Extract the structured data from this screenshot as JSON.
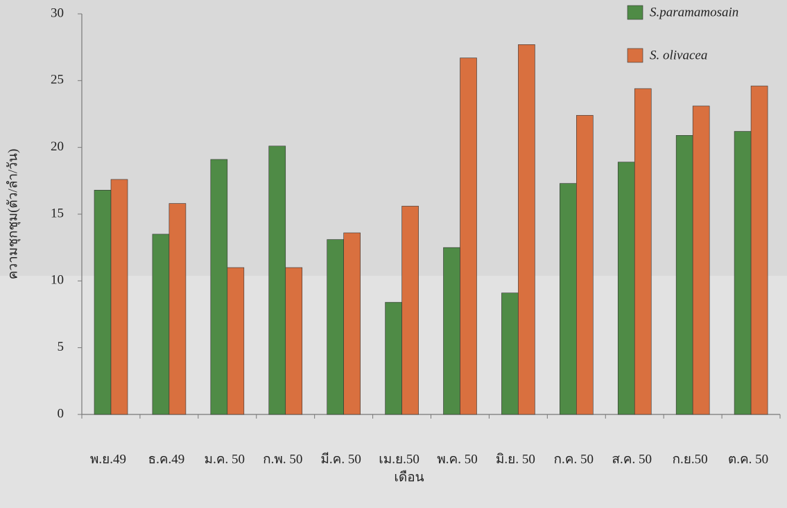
{
  "chart_data": {
    "type": "bar",
    "x_label": "เดือน",
    "y_label": "ความชุกชุม(ตัว/ลำ/วัน)",
    "categories": [
      "พ.ย.49",
      "ธ.ค.49",
      "ม.ค. 50",
      "ก.พ. 50",
      "มี.ค. 50",
      "เม.ย.50",
      "พ.ค. 50",
      "มิ.ย. 50",
      "ก.ค. 50",
      "ส.ค. 50",
      "ก.ย.50",
      "ต.ค. 50"
    ],
    "series": [
      {
        "name": "S.paramamosain",
        "color": "#4f8b46",
        "values": [
          16.8,
          13.5,
          19.1,
          20.1,
          13.1,
          8.4,
          12.5,
          9.1,
          17.3,
          18.9,
          20.9,
          21.2
        ]
      },
      {
        "name": "S. olivacea",
        "color": "#d9703f",
        "values": [
          17.6,
          15.8,
          11.0,
          11.0,
          13.6,
          15.6,
          26.7,
          27.7,
          22.4,
          24.4,
          23.1,
          24.6
        ]
      }
    ],
    "ylim": [
      0,
      30
    ],
    "yticks": [
      0,
      5,
      10,
      15,
      20,
      25,
      30
    ],
    "legend": "upper right",
    "grid": false
  }
}
